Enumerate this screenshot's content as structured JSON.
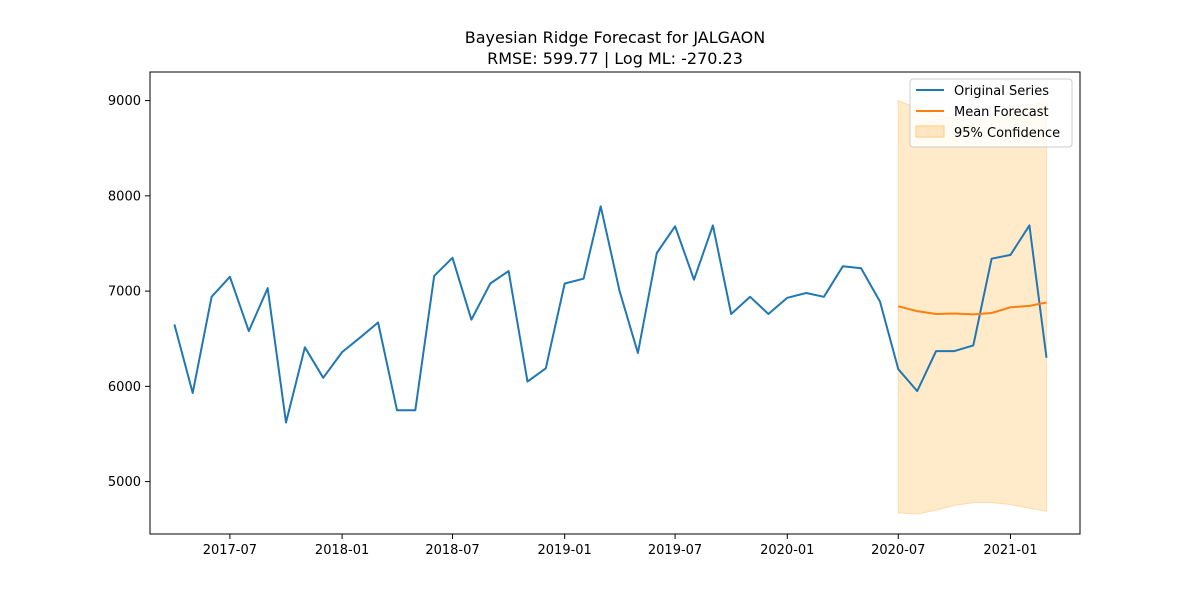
{
  "chart_data": {
    "type": "line",
    "title": "Bayesian Ridge Forecast for JALGAON",
    "subtitle": "RMSE: 599.77 | Log ML: -270.23",
    "xlabel": "",
    "ylabel": "",
    "ylim": [
      4450,
      9300
    ],
    "yticks": [
      5000,
      6000,
      7000,
      8000,
      9000
    ],
    "xlim": [
      "2017-02-20",
      "2021-04-25"
    ],
    "xticks": [
      "2017-07",
      "2018-01",
      "2018-07",
      "2019-01",
      "2019-07",
      "2020-01",
      "2020-07",
      "2021-01"
    ],
    "grid": false,
    "legend_position": "top-right",
    "colors": {
      "original": "#1f77b4",
      "forecast": "#ff7f0e",
      "confidence": "#ffcc80"
    },
    "series": [
      {
        "name": "Original Series",
        "x": [
          "2017-04",
          "2017-05",
          "2017-06",
          "2017-07",
          "2017-08",
          "2017-09",
          "2017-10",
          "2017-11",
          "2017-12",
          "2018-01",
          "2018-02",
          "2018-03",
          "2018-04",
          "2018-05",
          "2018-06",
          "2018-07",
          "2018-08",
          "2018-09",
          "2018-10",
          "2018-11",
          "2018-12",
          "2019-01",
          "2019-02",
          "2019-03",
          "2019-04",
          "2019-05",
          "2019-06",
          "2019-07",
          "2019-08",
          "2019-09",
          "2019-10",
          "2019-11",
          "2019-12",
          "2020-01",
          "2020-02",
          "2020-03",
          "2020-04",
          "2020-05",
          "2020-06",
          "2020-07",
          "2020-08",
          "2020-09",
          "2020-10",
          "2020-11",
          "2020-12",
          "2021-01",
          "2021-02",
          "2021-03"
        ],
        "values": [
          6650,
          5930,
          6940,
          7150,
          6580,
          7030,
          5620,
          6410,
          6090,
          6360,
          6520,
          6670,
          5750,
          5750,
          7160,
          7350,
          6700,
          7080,
          7210,
          6050,
          6190,
          7080,
          7130,
          7890,
          7000,
          6350,
          7400,
          7680,
          7120,
          7690,
          6760,
          6940,
          6760,
          6930,
          6980,
          6940,
          7260,
          7240,
          6890,
          6180,
          5950,
          6370,
          6370,
          6430,
          7340,
          7380,
          7690,
          6300
        ]
      },
      {
        "name": "Mean Forecast",
        "x": [
          "2020-07",
          "2020-08",
          "2020-09",
          "2020-10",
          "2020-11",
          "2020-12",
          "2021-01",
          "2021-02",
          "2021-03"
        ],
        "values": [
          6840,
          6790,
          6760,
          6765,
          6755,
          6770,
          6830,
          6845,
          6880
        ]
      },
      {
        "name": "95% Confidence",
        "x": [
          "2020-07",
          "2020-08",
          "2020-09",
          "2020-10",
          "2020-11",
          "2020-12",
          "2021-01",
          "2021-02",
          "2021-03"
        ],
        "lower": [
          4670,
          4660,
          4700,
          4750,
          4780,
          4780,
          4760,
          4720,
          4690
        ],
        "upper": [
          9000,
          8920,
          8850,
          8810,
          8800,
          8810,
          8870,
          8950,
          9000
        ]
      }
    ]
  }
}
